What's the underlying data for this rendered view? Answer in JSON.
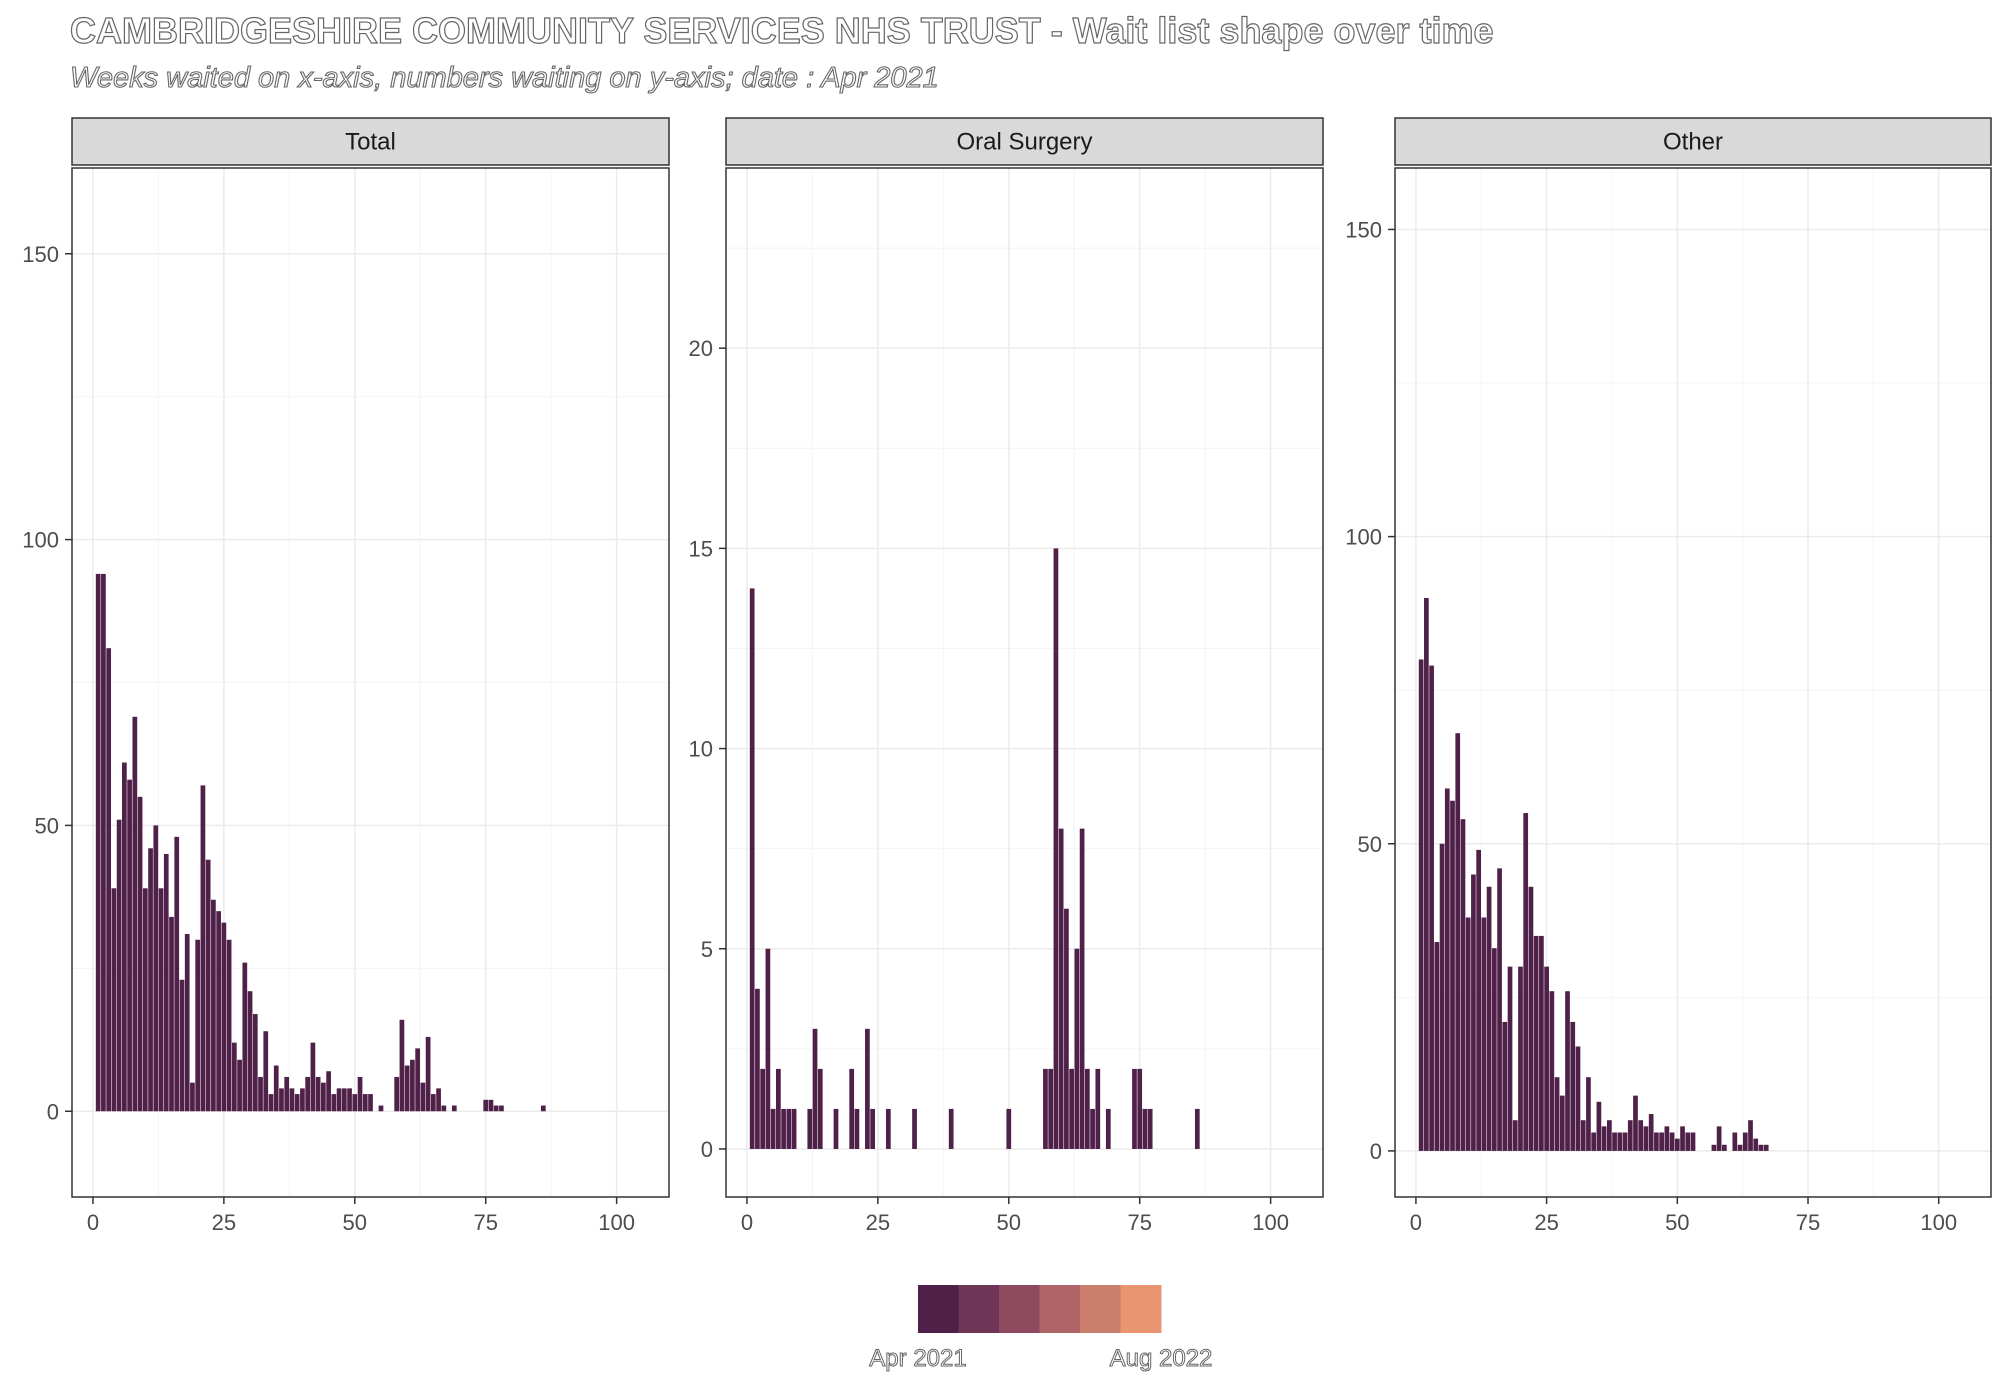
{
  "title": "CAMBRIDGESHIRE COMMUNITY SERVICES NHS TRUST - Wait list shape over time",
  "subtitle": "Weeks waited on x-axis, numbers waiting on y-axis; date : Apr 2021",
  "colors": {
    "bar": "#4f2149",
    "strip_bg": "#d9d9d9",
    "grid": "#ebebeb",
    "panel_border": "#333333"
  },
  "legend": {
    "start_label": "Apr 2021",
    "end_label": "Aug 2022",
    "colors": [
      "#4f2149",
      "#6e3556",
      "#8e4b60",
      "#ae6466",
      "#cc7f6c",
      "#ea9572"
    ]
  },
  "chart_data": [
    {
      "type": "bar",
      "panel": "Total",
      "xlim": [
        -4,
        110
      ],
      "ylim": [
        -15,
        165
      ],
      "x_ticks": [
        0,
        25,
        50,
        75,
        100
      ],
      "y_ticks": [
        0,
        50,
        100,
        150
      ],
      "x": [
        1,
        2,
        3,
        4,
        5,
        6,
        7,
        8,
        9,
        10,
        11,
        12,
        13,
        14,
        15,
        16,
        17,
        18,
        19,
        20,
        21,
        22,
        23,
        24,
        25,
        26,
        27,
        28,
        29,
        30,
        31,
        32,
        33,
        34,
        35,
        36,
        37,
        38,
        39,
        40,
        41,
        42,
        43,
        44,
        45,
        46,
        47,
        48,
        49,
        50,
        51,
        52,
        53,
        54,
        55,
        56,
        57,
        58,
        59,
        60,
        61,
        62,
        63,
        64,
        65,
        66,
        67,
        68,
        69,
        70,
        71,
        72,
        73,
        74,
        75,
        76,
        77,
        78,
        79,
        80,
        81,
        82,
        83,
        84,
        85,
        86
      ],
      "values": [
        94,
        94,
        81,
        39,
        51,
        61,
        58,
        69,
        55,
        39,
        46,
        50,
        39,
        45,
        34,
        48,
        23,
        31,
        5,
        30,
        57,
        44,
        37,
        35,
        33,
        30,
        12,
        9,
        26,
        21,
        17,
        6,
        14,
        3,
        8,
        4,
        6,
        4,
        3,
        4,
        6,
        12,
        6,
        5,
        7,
        3,
        4,
        4,
        4,
        3,
        6,
        3,
        3,
        0,
        1,
        0,
        0,
        6,
        16,
        8,
        9,
        11,
        5,
        13,
        3,
        4,
        1,
        0,
        1,
        0,
        0,
        0,
        0,
        0,
        2,
        2,
        1,
        1,
        0,
        0,
        0,
        0,
        0,
        0,
        0,
        1
      ]
    },
    {
      "type": "bar",
      "panel": "Oral Surgery",
      "xlim": [
        -4,
        110
      ],
      "ylim": [
        -1.2,
        24.5
      ],
      "x_ticks": [
        0,
        25,
        50,
        75,
        100
      ],
      "y_ticks": [
        0,
        5,
        10,
        15,
        20
      ],
      "x": [
        1,
        2,
        3,
        4,
        5,
        6,
        7,
        8,
        9,
        12,
        13,
        14,
        17,
        20,
        21,
        23,
        24,
        27,
        32,
        39,
        50,
        57,
        58,
        59,
        60,
        61,
        62,
        63,
        64,
        65,
        66,
        67,
        69,
        74,
        75,
        76,
        77,
        86
      ],
      "values": [
        14,
        4,
        2,
        5,
        1,
        2,
        1,
        1,
        1,
        1,
        3,
        2,
        1,
        2,
        1,
        3,
        1,
        1,
        1,
        1,
        1,
        2,
        2,
        15,
        8,
        6,
        2,
        5,
        8,
        2,
        1,
        2,
        1,
        2,
        2,
        1,
        1,
        1
      ]
    },
    {
      "type": "bar",
      "panel": "Other",
      "xlim": [
        -4,
        110
      ],
      "ylim": [
        -7.5,
        160
      ],
      "x_ticks": [
        0,
        25,
        50,
        75,
        100
      ],
      "y_ticks": [
        0,
        50,
        100,
        150
      ],
      "x": [
        1,
        2,
        3,
        4,
        5,
        6,
        7,
        8,
        9,
        10,
        11,
        12,
        13,
        14,
        15,
        16,
        17,
        18,
        19,
        20,
        21,
        22,
        23,
        24,
        25,
        26,
        27,
        28,
        29,
        30,
        31,
        32,
        33,
        34,
        35,
        36,
        37,
        38,
        39,
        40,
        41,
        42,
        43,
        44,
        45,
        46,
        47,
        48,
        49,
        50,
        51,
        52,
        53,
        54,
        55,
        56,
        57,
        58,
        59,
        60,
        61,
        62,
        63,
        64,
        65,
        66,
        67
      ],
      "values": [
        80,
        90,
        79,
        34,
        50,
        59,
        57,
        68,
        54,
        38,
        45,
        49,
        38,
        43,
        33,
        46,
        21,
        30,
        5,
        30,
        55,
        43,
        35,
        35,
        30,
        26,
        12,
        9,
        26,
        21,
        17,
        5,
        12,
        3,
        8,
        4,
        5,
        3,
        3,
        3,
        5,
        9,
        5,
        4,
        6,
        3,
        3,
        4,
        3,
        2,
        4,
        3,
        3,
        0,
        0,
        0,
        1,
        4,
        1,
        0,
        3,
        1,
        3,
        5,
        2,
        1,
        1
      ]
    }
  ]
}
